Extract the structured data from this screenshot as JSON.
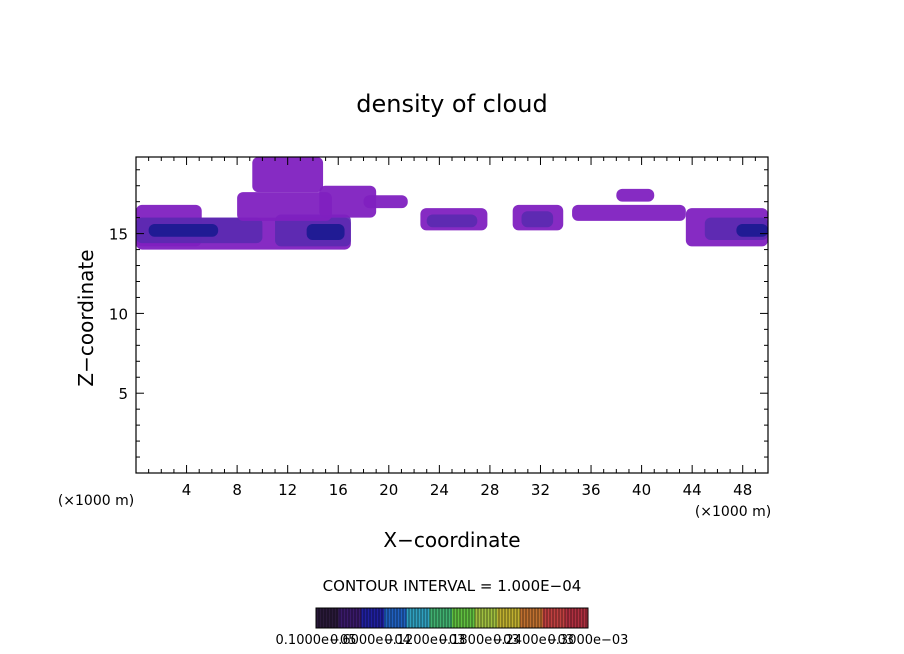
{
  "chart_data": {
    "type": "heatmap",
    "title": "density of cloud",
    "xlabel": "X−coordinate",
    "ylabel": "Z−coordinate",
    "x_unit_left": "(×1000 m)",
    "x_unit_right": "(×1000 m)",
    "xlim": [
      0,
      50
    ],
    "ylim": [
      0,
      19.8
    ],
    "x_ticks": [
      4,
      8,
      12,
      16,
      20,
      24,
      28,
      32,
      36,
      40,
      44,
      48
    ],
    "y_ticks": [
      5,
      10,
      15
    ],
    "contour_interval_text": "CONTOUR INTERVAL = 1.000E−04",
    "colorbar_labels": [
      "0.1000e−05",
      "0.6000e−04",
      "0.1200e−03",
      "0.1800e−03",
      "0.2400e−03",
      "0.3000e−03"
    ],
    "colorbar_colors": [
      "#2a1a3a",
      "#3a1a6a",
      "#2020a0",
      "#2060c0",
      "#30a0c0",
      "#40b070",
      "#60c040",
      "#a0c040",
      "#c0b030",
      "#c07030",
      "#c04040",
      "#b03040"
    ],
    "cloud_color_low": "#8020c0",
    "cloud_color_mid": "#5a2ab0",
    "cloud_color_high": "#1a1a90",
    "cloud_regions": [
      {
        "x": [
          0.0,
          5.2
        ],
        "z": [
          14.2,
          16.8
        ],
        "level": "low"
      },
      {
        "x": [
          0.0,
          17.0
        ],
        "z": [
          14.0,
          16.0
        ],
        "level": "low"
      },
      {
        "x": [
          0.0,
          10.0
        ],
        "z": [
          14.4,
          16.0
        ],
        "level": "mid"
      },
      {
        "x": [
          11.0,
          17.0
        ],
        "z": [
          14.2,
          16.2
        ],
        "level": "mid"
      },
      {
        "x": [
          1.0,
          6.5
        ],
        "z": [
          14.8,
          15.6
        ],
        "level": "high"
      },
      {
        "x": [
          13.5,
          16.5
        ],
        "z": [
          14.6,
          15.6
        ],
        "level": "high"
      },
      {
        "x": [
          8.0,
          15.5
        ],
        "z": [
          15.8,
          17.6
        ],
        "level": "low"
      },
      {
        "x": [
          14.5,
          19.0
        ],
        "z": [
          16.0,
          18.0
        ],
        "level": "low"
      },
      {
        "x": [
          9.2,
          14.8
        ],
        "z": [
          17.6,
          19.8
        ],
        "level": "low"
      },
      {
        "x": [
          18.0,
          21.5
        ],
        "z": [
          16.6,
          17.4
        ],
        "level": "low"
      },
      {
        "x": [
          22.5,
          27.8
        ],
        "z": [
          15.2,
          16.6
        ],
        "level": "low"
      },
      {
        "x": [
          23.0,
          27.0
        ],
        "z": [
          15.4,
          16.2
        ],
        "level": "mid"
      },
      {
        "x": [
          29.8,
          33.8
        ],
        "z": [
          15.2,
          16.8
        ],
        "level": "low"
      },
      {
        "x": [
          30.5,
          33.0
        ],
        "z": [
          15.4,
          16.4
        ],
        "level": "mid"
      },
      {
        "x": [
          34.5,
          43.5
        ],
        "z": [
          15.8,
          16.8
        ],
        "level": "low"
      },
      {
        "x": [
          38.0,
          41.0
        ],
        "z": [
          17.0,
          17.8
        ],
        "level": "low"
      },
      {
        "x": [
          43.5,
          50.0
        ],
        "z": [
          14.2,
          16.6
        ],
        "level": "low"
      },
      {
        "x": [
          45.0,
          50.0
        ],
        "z": [
          14.6,
          16.0
        ],
        "level": "mid"
      },
      {
        "x": [
          47.5,
          50.0
        ],
        "z": [
          14.8,
          15.6
        ],
        "level": "high"
      }
    ]
  }
}
